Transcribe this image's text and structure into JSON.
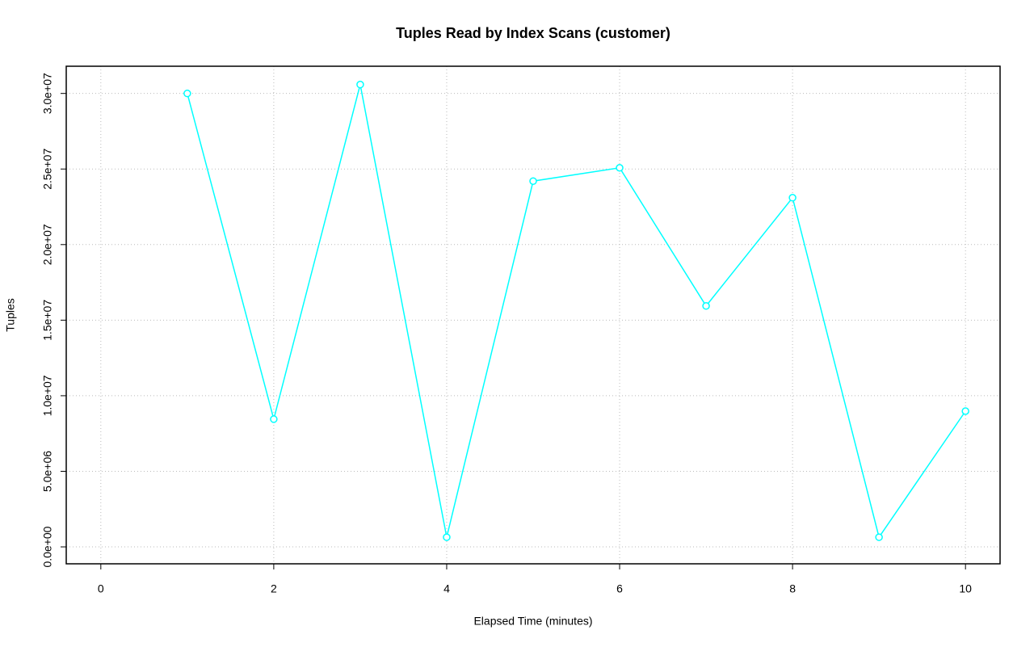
{
  "chart_data": {
    "type": "line",
    "title": "Tuples Read by Index Scans (customer)",
    "x_label": "Elapsed Time (minutes)",
    "y_label": "Tuples",
    "x": [
      1,
      2,
      3,
      4,
      5,
      6,
      7,
      8,
      9,
      10
    ],
    "series": [
      {
        "name": "Tuples",
        "color": "#00ffff",
        "values": [
          30000000,
          8450000,
          30590000,
          640000,
          24200000,
          25080000,
          15940000,
          23100000,
          640000,
          8980000
        ]
      }
    ],
    "xlim": [
      -0.4,
      10.4
    ],
    "ylim": [
      -1120000,
      31800000
    ],
    "xticks": [
      0,
      2,
      4,
      6,
      8,
      10
    ],
    "yticks": [
      {
        "value": 0,
        "label": "0.0e+00"
      },
      {
        "value": 5000000,
        "label": "5.0e+06"
      },
      {
        "value": 10000000,
        "label": "1.0e+07"
      },
      {
        "value": 15000000,
        "label": "1.5e+07"
      },
      {
        "value": 20000000,
        "label": "2.0e+07"
      },
      {
        "value": 25000000,
        "label": "2.5e+07"
      },
      {
        "value": 30000000,
        "label": "3.0e+07"
      }
    ],
    "grid": true
  }
}
